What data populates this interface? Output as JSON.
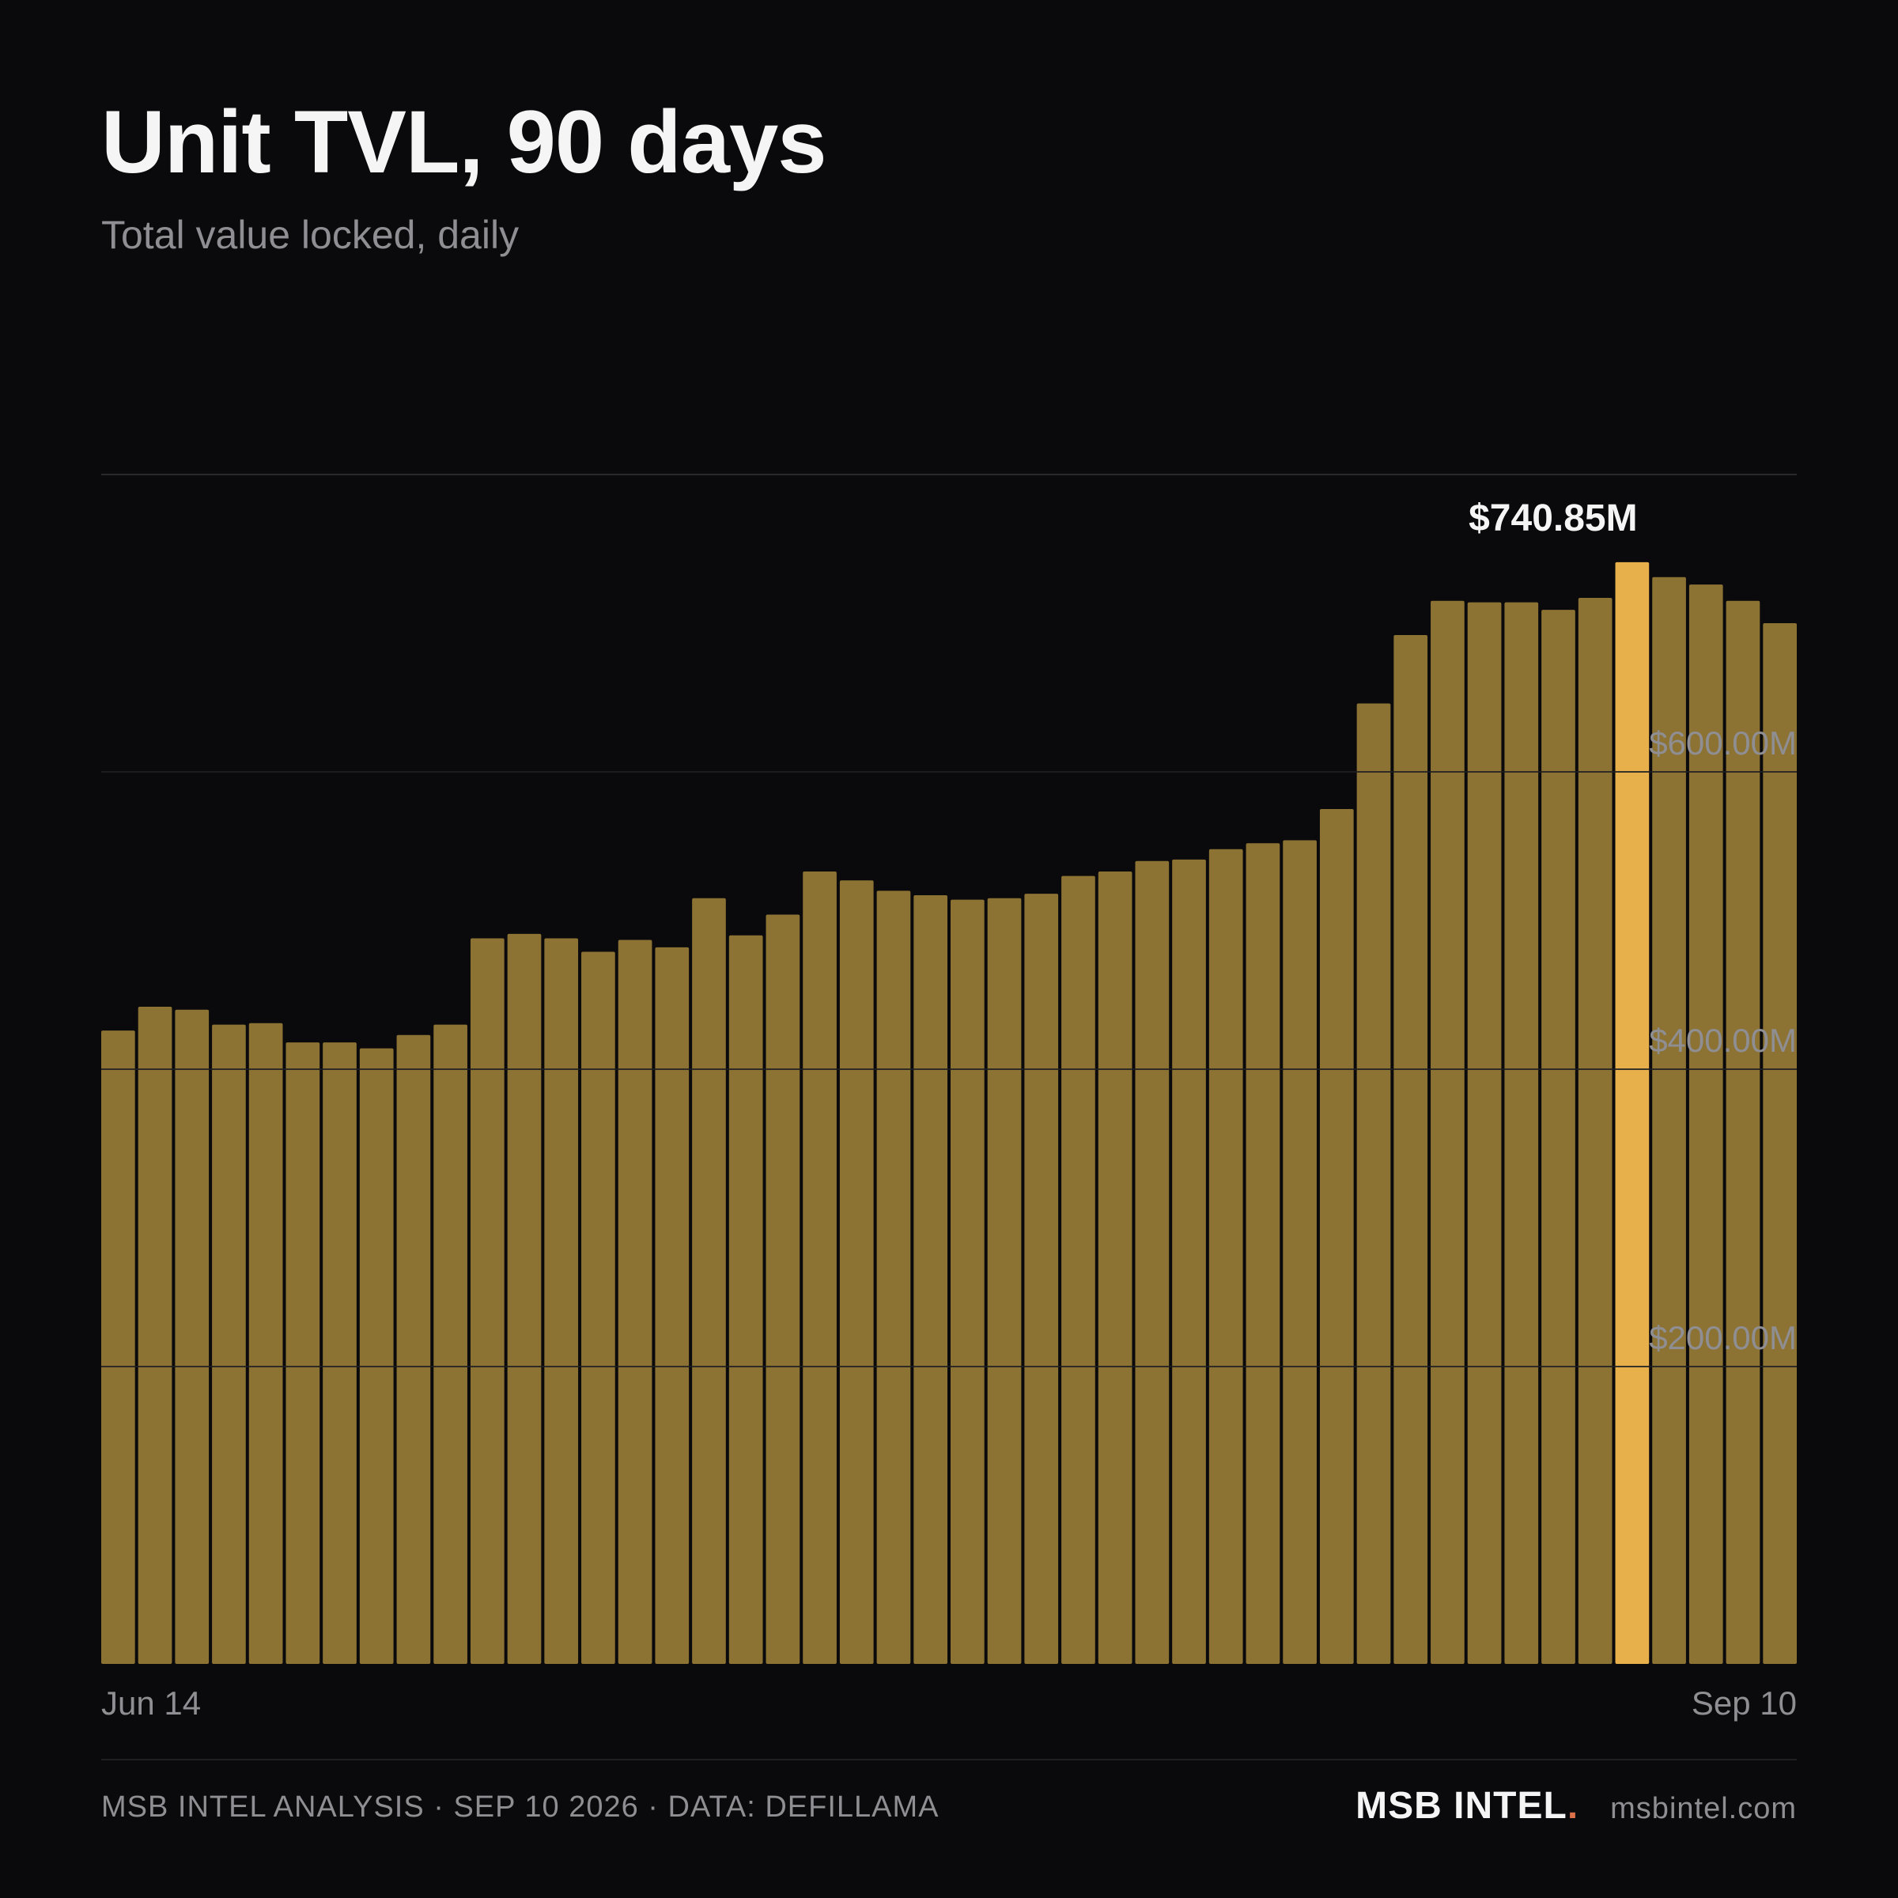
{
  "header": {
    "title": "Unit TVL, 90 days",
    "subtitle": "Total value locked, daily"
  },
  "footer": {
    "analysis": "MSB INTEL ANALYSIS · SEP 10 2026 · DATA: DEFILLAMA",
    "brand": "MSB INTEL",
    "brand_dot": ".",
    "site": "msbintel.com"
  },
  "colors": {
    "background": "#0a0a0c",
    "bar": "#8c7233",
    "highlight_bar": "#e8b04a",
    "grid": "#2a2a2e",
    "tick_text": "#8e8e93",
    "title_text": "#f5f5f5",
    "brand_dot": "#d9704a"
  },
  "chart_data": {
    "type": "bar",
    "title": "Unit TVL, 90 days",
    "subtitle": "Total value locked, daily",
    "ylim": [
      0,
      800
    ],
    "y_ticks": [
      200,
      400,
      600
    ],
    "y_tick_labels": [
      "$200.00M",
      "$400.00M",
      "$600.00M"
    ],
    "x_tick_labels": [
      "Jun 14",
      "Sep 10"
    ],
    "grid": true,
    "values": [
      426,
      442,
      440,
      430,
      431,
      418,
      418,
      414,
      423,
      430,
      488,
      491,
      488,
      479,
      487,
      482,
      515,
      490,
      504,
      533,
      527,
      520,
      517,
      514,
      515,
      518,
      530,
      533,
      540,
      541,
      548,
      552,
      554,
      575,
      646,
      692,
      715,
      714,
      714,
      709,
      717,
      741,
      731,
      726,
      715,
      700
    ],
    "highlight_index": 41,
    "highlight_label": "$740.85M"
  }
}
